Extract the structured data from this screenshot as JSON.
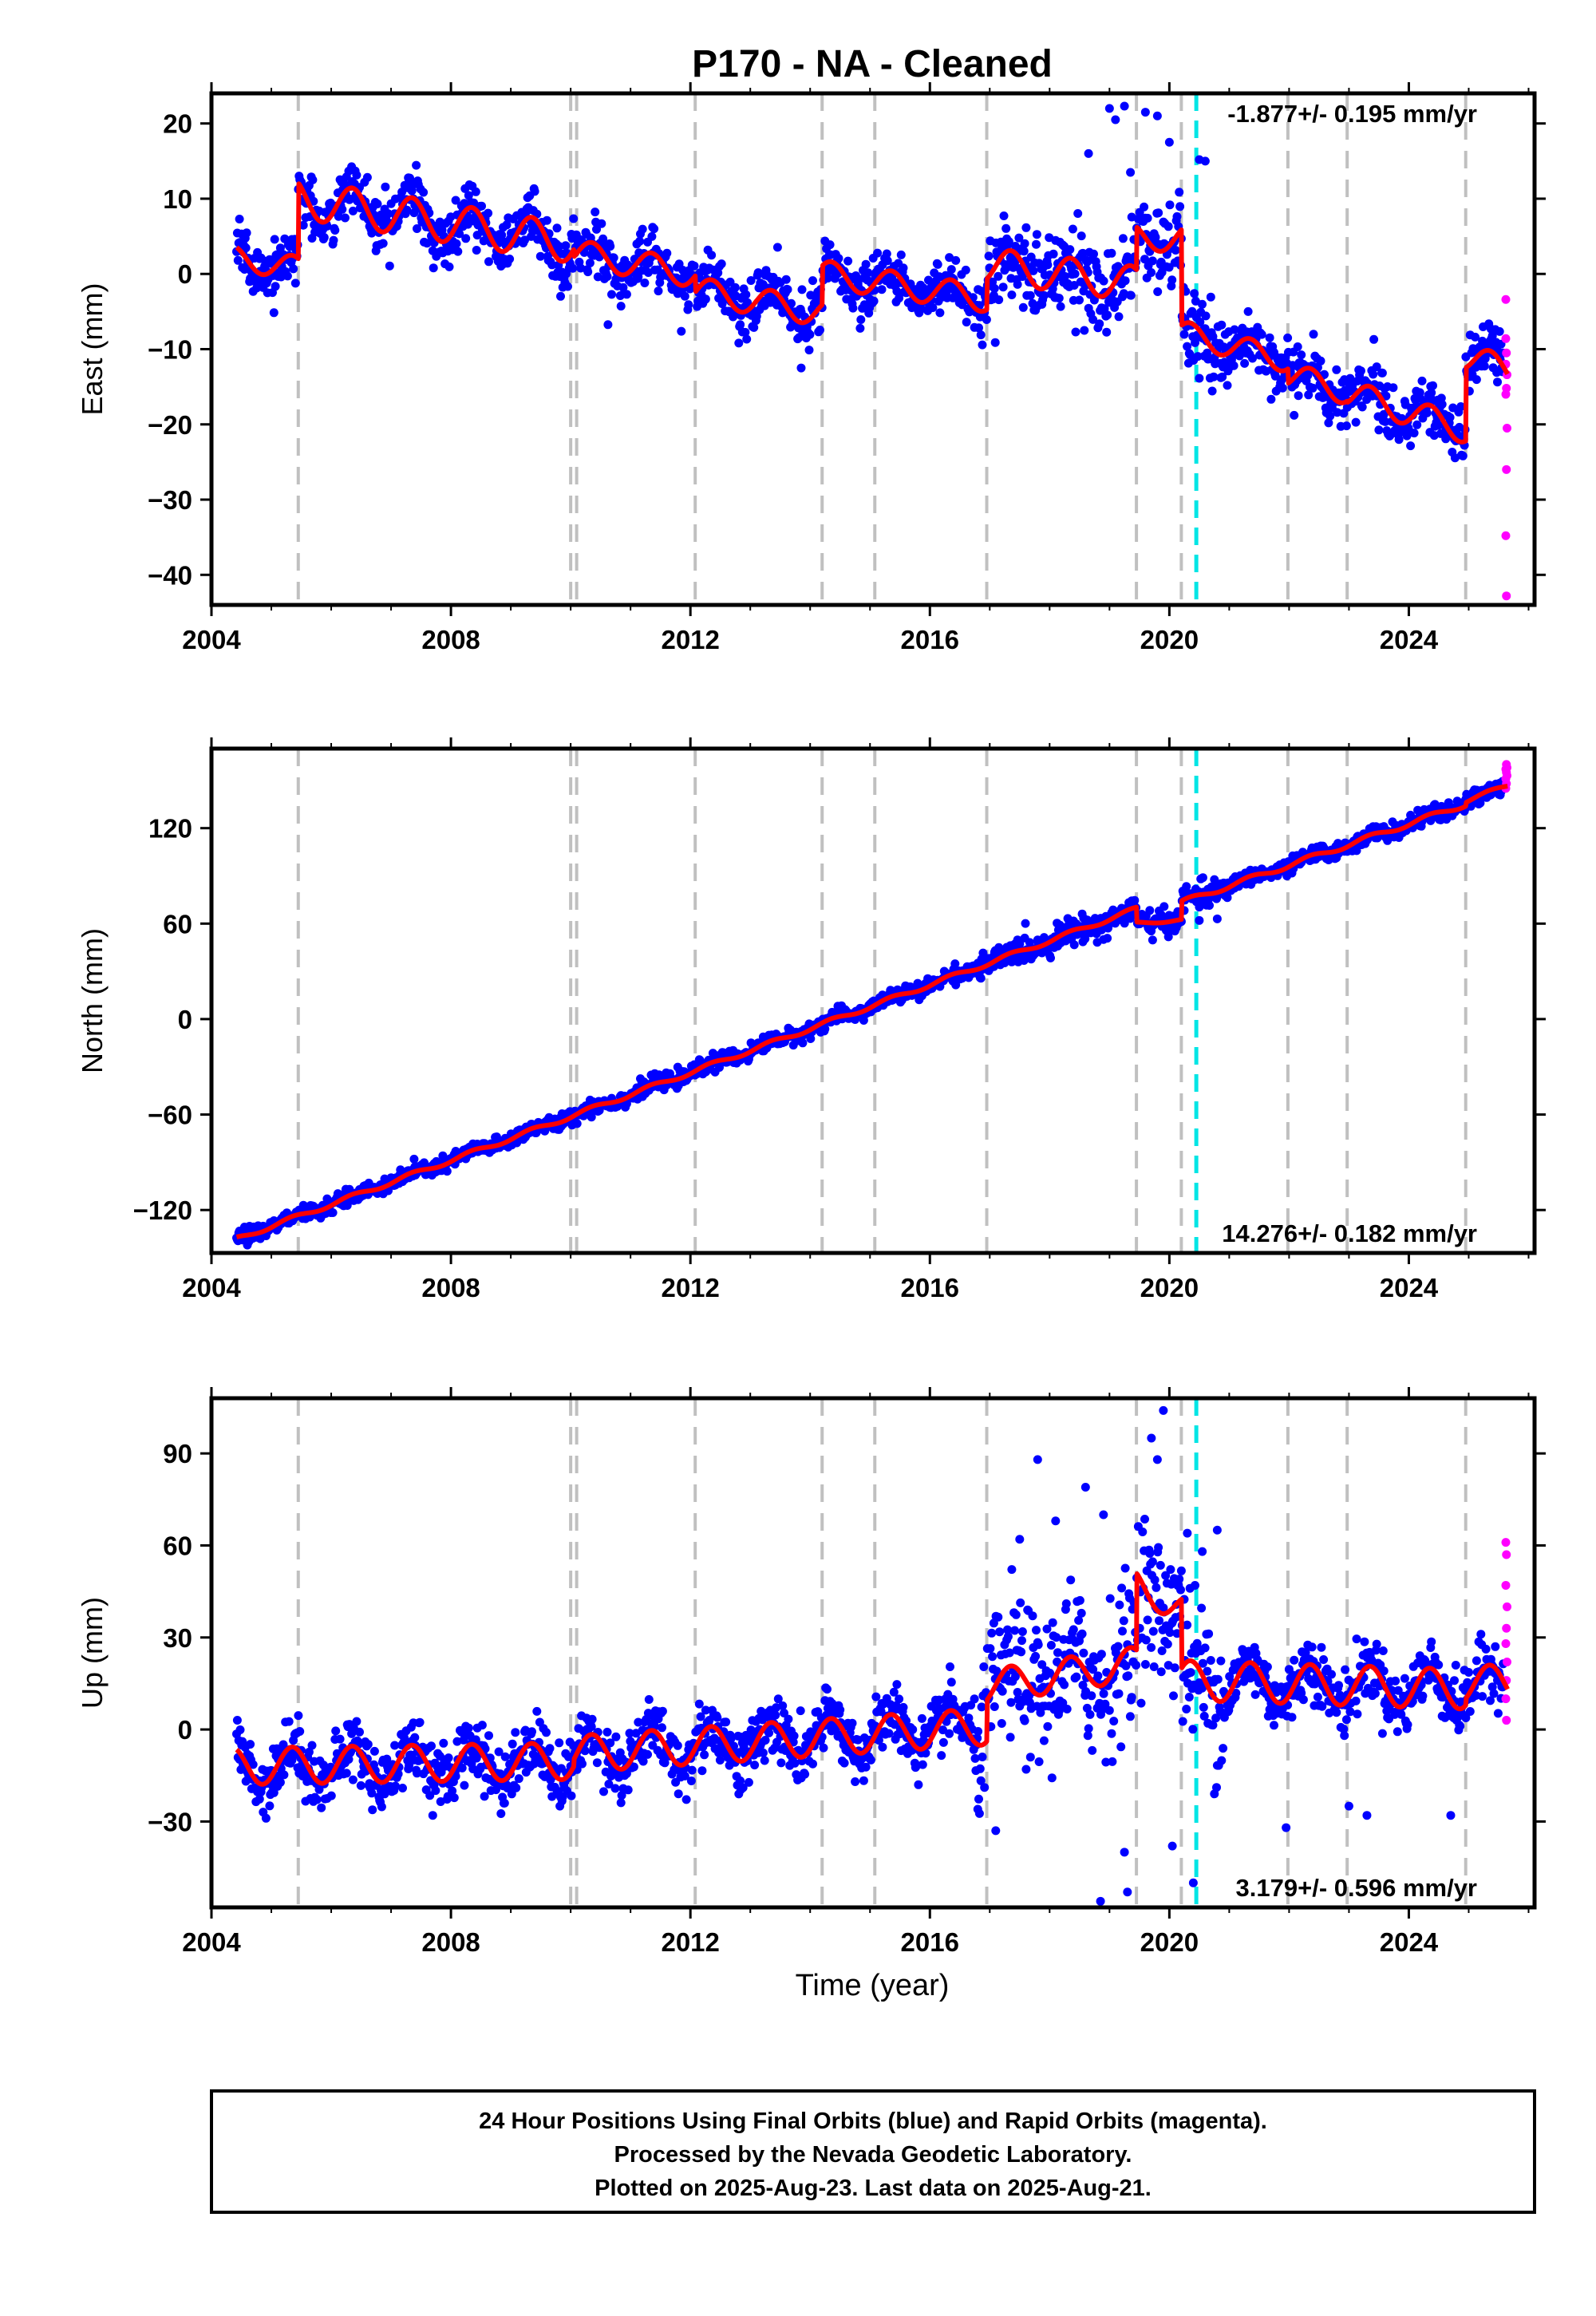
{
  "figure": {
    "title": "P170  - NA - Cleaned",
    "footer_lines": [
      "24 Hour Positions Using Final Orbits (blue) and Rapid Orbits (magenta).",
      "Processed by the Nevada Geodetic Laboratory.",
      "Plotted on 2025-Aug-23. Last data on 2025-Aug-21."
    ],
    "xlabel": "Time (year)"
  },
  "colors": {
    "final_orbits": "#0000ff",
    "rapid_orbits": "#ff00ff",
    "model": "#ff0000",
    "equipment_change": "#c0c0c0",
    "earthquake": "#00e5e5",
    "axes": "#000000"
  },
  "chart_data": [
    {
      "type": "scatter",
      "name": "east",
      "ylabel": "East (mm)",
      "rate_label": "-1.877+/- 0.195 mm/yr",
      "rate_position": "top-right",
      "xlim": [
        2004.0,
        2026.1
      ],
      "ylim": [
        -44,
        24
      ],
      "xticks": [
        2004,
        2008,
        2012,
        2016,
        2020,
        2024
      ],
      "yticks": [
        -40,
        -30,
        -20,
        -10,
        0,
        10,
        20
      ],
      "ytick_labels": [
        "−40",
        "−30",
        "−20",
        "−10",
        "0",
        "10",
        "20"
      ],
      "vlines_gray": [
        2005.45,
        2010.0,
        2010.1,
        2012.08,
        2014.2,
        2015.08,
        2016.95,
        2019.45,
        2020.2,
        2021.98,
        2022.97,
        2024.95
      ],
      "vlines_cyan": [
        2020.45
      ],
      "model": [
        {
          "start": 2004.4,
          "end": 2005.45,
          "offset": 2.1,
          "trend": -1.3,
          "amp": 1.6
        },
        {
          "start": 2005.45,
          "end": 2010.05,
          "offset": 10.0,
          "trend": -1.3,
          "amp": 2.6
        },
        {
          "start": 2010.05,
          "end": 2012.08,
          "offset": 2.8,
          "trend": -1.4,
          "amp": 1.8
        },
        {
          "start": 2012.08,
          "end": 2014.2,
          "offset": -2.2,
          "trend": -1.4,
          "amp": 1.8
        },
        {
          "start": 2014.2,
          "end": 2016.95,
          "offset": 0.0,
          "trend": -1.2,
          "amp": 1.8
        },
        {
          "start": 2016.95,
          "end": 2019.45,
          "offset": 1.2,
          "trend": -1.0,
          "amp": 2.3
        },
        {
          "start": 2019.45,
          "end": 2020.2,
          "offset": 4.8,
          "trend": 0.0,
          "amp": 1.8
        },
        {
          "start": 2020.2,
          "end": 2021.98,
          "offset": -7.8,
          "trend": -2.1,
          "amp": 1.6
        },
        {
          "start": 2021.98,
          "end": 2022.97,
          "offset": -13.4,
          "trend": -2.3,
          "amp": 1.7
        },
        {
          "start": 2022.97,
          "end": 2024.95,
          "offset": -15.8,
          "trend": -2.5,
          "amp": 1.8
        },
        {
          "start": 2024.95,
          "end": 2025.65,
          "offset": -11.0,
          "trend": -2.5,
          "amp": 1.8
        }
      ],
      "scatter_sigma": 1.8,
      "outliers": [
        [
          2019.0,
          22.0
        ],
        [
          2019.1,
          20.5
        ],
        [
          2019.25,
          22.3
        ],
        [
          2019.6,
          21.5
        ],
        [
          2019.8,
          21.0
        ],
        [
          2020.0,
          17.5
        ],
        [
          2018.65,
          16.0
        ],
        [
          2020.5,
          15.2
        ],
        [
          2020.6,
          15.0
        ],
        [
          2013.85,
          -12.5
        ],
        [
          2019.35,
          13.5
        ],
        [
          2020.65,
          -8.0
        ]
      ],
      "rapid_points": [
        [
          2025.62,
          -3.4
        ],
        [
          2025.62,
          -8.6
        ],
        [
          2025.63,
          -10.5
        ],
        [
          2025.62,
          -12.0
        ],
        [
          2025.64,
          -13.4
        ],
        [
          2025.63,
          -15.2
        ],
        [
          2025.62,
          -16.0
        ],
        [
          2025.64,
          -20.5
        ],
        [
          2025.63,
          -26.0
        ],
        [
          2025.62,
          -34.8
        ],
        [
          2025.63,
          -42.8
        ]
      ]
    },
    {
      "type": "scatter",
      "name": "north",
      "ylabel": "North (mm)",
      "rate_label": "14.276+/- 0.182 mm/yr",
      "rate_position": "bottom-right",
      "xlim": [
        2004.0,
        2026.1
      ],
      "ylim": [
        -147,
        170
      ],
      "xticks": [
        2004,
        2008,
        2012,
        2016,
        2020,
        2024
      ],
      "yticks": [
        -120,
        -60,
        0,
        60,
        120
      ],
      "ytick_labels": [
        "−120",
        "−60",
        "0",
        "60",
        "120"
      ],
      "vlines_gray": [
        2005.45,
        2010.0,
        2010.1,
        2012.08,
        2014.2,
        2015.08,
        2016.95,
        2019.45,
        2020.2,
        2021.98,
        2022.97,
        2024.95
      ],
      "vlines_cyan": [
        2020.45
      ],
      "model": [
        {
          "start": 2004.4,
          "end": 2019.45,
          "offset": -138.5,
          "trend": 13.8,
          "amp": 1.4
        },
        {
          "start": 2019.45,
          "end": 2020.2,
          "offset": 60.3,
          "trend": 2.5,
          "amp": 0.8
        },
        {
          "start": 2020.2,
          "end": 2024.95,
          "offset": 73.3,
          "trend": 13.0,
          "amp": 1.6
        },
        {
          "start": 2024.95,
          "end": 2025.65,
          "offset": 137.0,
          "trend": 14.0,
          "amp": 1.2
        }
      ],
      "scatter_sigma": 2.4,
      "outliers": [
        [
          2019.1,
          62.0
        ],
        [
          2019.3,
          70.0
        ],
        [
          2020.5,
          62.0
        ],
        [
          2020.8,
          63.0
        ],
        [
          2018.9,
          50.0
        ]
      ],
      "rapid_points": [
        [
          2025.62,
          145.0
        ],
        [
          2025.63,
          148.0
        ],
        [
          2025.62,
          151.0
        ],
        [
          2025.64,
          153.0
        ],
        [
          2025.63,
          155.0
        ],
        [
          2025.62,
          157.0
        ],
        [
          2025.64,
          158.0
        ],
        [
          2025.63,
          160.0
        ]
      ]
    },
    {
      "type": "scatter",
      "name": "up",
      "ylabel": "Up (mm)",
      "rate_label": "3.179+/- 0.596 mm/yr",
      "rate_position": "bottom-right",
      "xlim": [
        2004.0,
        2026.1
      ],
      "ylim": [
        -58,
        108
      ],
      "xticks": [
        2004,
        2008,
        2012,
        2016,
        2020,
        2024
      ],
      "yticks": [
        -30,
        0,
        30,
        60,
        90
      ],
      "ytick_labels": [
        "−30",
        "0",
        "30",
        "60",
        "90"
      ],
      "vlines_gray": [
        2005.45,
        2010.0,
        2010.1,
        2012.08,
        2014.2,
        2015.08,
        2016.95,
        2019.45,
        2020.2,
        2021.98,
        2022.97,
        2024.95
      ],
      "vlines_cyan": [
        2020.45
      ],
      "model": [
        {
          "start": 2004.4,
          "end": 2010.05,
          "offset": -12.0,
          "trend": 0.3,
          "amp": 6.0
        },
        {
          "start": 2010.05,
          "end": 2016.95,
          "offset": -8.0,
          "trend": 1.3,
          "amp": 6.0
        },
        {
          "start": 2016.95,
          "end": 2019.45,
          "offset": 14.0,
          "trend": 3.0,
          "amp": 5.5
        },
        {
          "start": 2019.45,
          "end": 2020.2,
          "offset": 47.0,
          "trend": -10.0,
          "amp": 5.0
        },
        {
          "start": 2020.2,
          "end": 2024.95,
          "offset": 16.0,
          "trend": -0.6,
          "amp": 6.5
        },
        {
          "start": 2024.95,
          "end": 2025.65,
          "offset": 15.0,
          "trend": 0.0,
          "amp": 6.0
        }
      ],
      "scatter_sigma": 5.0,
      "outliers": [
        [
          2017.8,
          88.0
        ],
        [
          2018.6,
          79.0
        ],
        [
          2018.9,
          70.0
        ],
        [
          2019.9,
          104.0
        ],
        [
          2019.7,
          95.0
        ],
        [
          2019.8,
          88.0
        ],
        [
          2020.3,
          64.0
        ],
        [
          2020.8,
          65.0
        ],
        [
          2020.55,
          58.0
        ],
        [
          2019.3,
          -53.0
        ],
        [
          2018.85,
          -56.0
        ],
        [
          2019.25,
          -40.0
        ],
        [
          2020.05,
          -38.0
        ],
        [
          2020.4,
          -50.0
        ],
        [
          2017.1,
          -33.0
        ],
        [
          2016.8,
          -26.0
        ],
        [
          2021.95,
          -32.0
        ],
        [
          2023.3,
          -28.0
        ],
        [
          2024.7,
          -28.0
        ],
        [
          2023.0,
          -25.0
        ],
        [
          2017.5,
          62.0
        ],
        [
          2018.1,
          68.0
        ]
      ],
      "rapid_points": [
        [
          2025.62,
          61.0
        ],
        [
          2025.63,
          57.0
        ],
        [
          2025.62,
          47.0
        ],
        [
          2025.64,
          40.0
        ],
        [
          2025.63,
          33.0
        ],
        [
          2025.62,
          28.0
        ],
        [
          2025.64,
          22.0
        ],
        [
          2025.63,
          16.0
        ],
        [
          2025.62,
          10.0
        ],
        [
          2025.63,
          3.0
        ]
      ]
    }
  ]
}
